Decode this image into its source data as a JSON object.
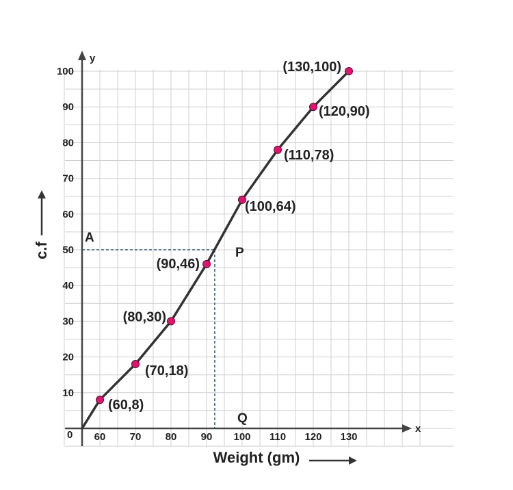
{
  "chart_data": {
    "type": "line",
    "title": "",
    "xlabel": "Weight (gm)",
    "ylabel": "c.f",
    "x_axis_letter": "x",
    "y_axis_letter": "y",
    "origin_label": "0",
    "xlim": [
      50,
      150
    ],
    "ylim": [
      -2,
      105
    ],
    "x_ticks": [
      60,
      70,
      80,
      90,
      100,
      110,
      120,
      130
    ],
    "y_ticks": [
      10,
      20,
      30,
      40,
      50,
      60,
      70,
      80,
      90,
      100
    ],
    "grid": true,
    "series": [
      {
        "color": "#333333",
        "marker_color": "#e0146e",
        "points": [
          {
            "x": 55,
            "y": 0,
            "label": ""
          },
          {
            "x": 60,
            "y": 8,
            "label": "(60,8)"
          },
          {
            "x": 70,
            "y": 18,
            "label": "(70,18)"
          },
          {
            "x": 80,
            "y": 30,
            "label": "(80,30)"
          },
          {
            "x": 90,
            "y": 46,
            "label": "(90,46)"
          },
          {
            "x": 100,
            "y": 64,
            "label": "(100,64)"
          },
          {
            "x": 110,
            "y": 78,
            "label": "(110,78)"
          },
          {
            "x": 120,
            "y": 90,
            "label": "(120,90)"
          },
          {
            "x": 130,
            "y": 100,
            "label": "(130,100)"
          }
        ]
      }
    ],
    "annotations": {
      "median_line_y": 50,
      "median_x": 92.3,
      "label_A": "A",
      "label_P": "P",
      "label_Q": "Q",
      "dash_color": "#335577"
    }
  }
}
